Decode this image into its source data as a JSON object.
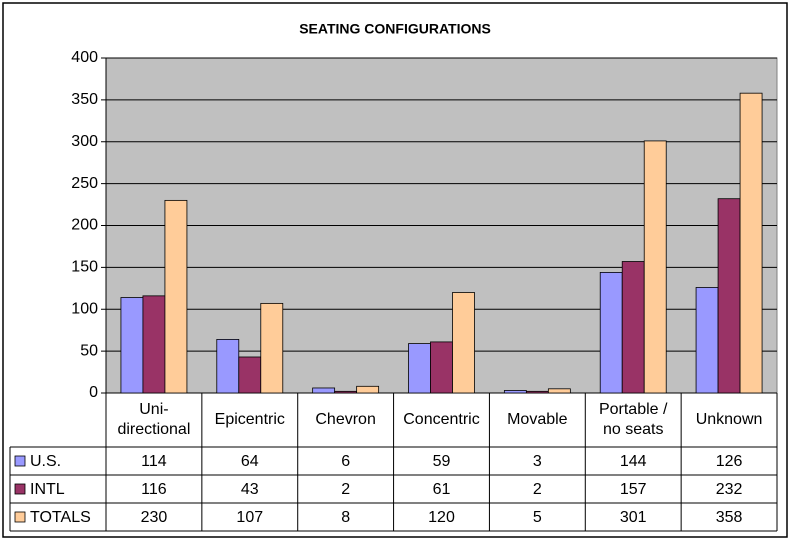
{
  "chart_data": {
    "type": "bar",
    "title": "SEATING CONFIGURATIONS",
    "categories": [
      "Uni-\ndirectional",
      "Epicentric",
      "Chevron",
      "Concentric",
      "Movable",
      "Portable /\nno seats",
      "Unknown"
    ],
    "series": [
      {
        "name": "U.S.",
        "color": "#9999ff",
        "values": [
          114,
          64,
          6,
          59,
          3,
          144,
          126
        ]
      },
      {
        "name": "INTL",
        "color": "#993366",
        "values": [
          116,
          43,
          2,
          61,
          2,
          157,
          232
        ]
      },
      {
        "name": "TOTALS",
        "color": "#ffcc99",
        "values": [
          230,
          107,
          8,
          120,
          5,
          301,
          358
        ]
      }
    ],
    "ylim": [
      0,
      400
    ],
    "yticks": [
      0,
      50,
      100,
      150,
      200,
      250,
      300,
      350,
      400
    ],
    "grid": true,
    "data_table": true
  }
}
